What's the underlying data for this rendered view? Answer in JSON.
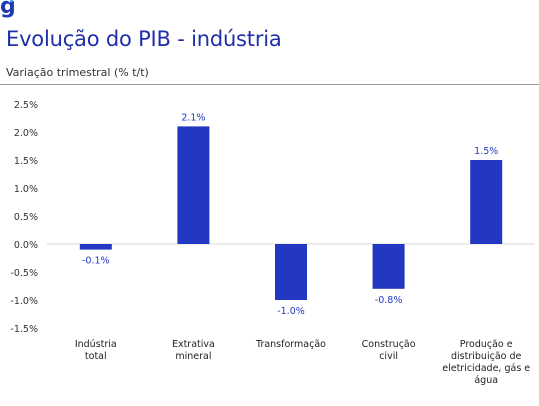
{
  "brand": {
    "logo_text": "g",
    "accent_color": "#4aa3ff"
  },
  "header": {
    "title": "Evolução do PIB - indústria",
    "subtitle": "Variação trimestral (% t/t)"
  },
  "chart_data": {
    "type": "bar",
    "title": "Evolução do PIB - indústria",
    "ylabel": "Variação trimestral (% t/t)",
    "xlabel": "",
    "categories": [
      [
        "Indústria",
        "total"
      ],
      [
        "Extrativa",
        "mineral"
      ],
      [
        "Transformação"
      ],
      [
        "Construção",
        "civil"
      ],
      [
        "Produção e",
        "distribuição de",
        "eletricidade, gás e",
        "água"
      ]
    ],
    "values": [
      -0.1,
      2.1,
      -1.0,
      -0.8,
      1.5
    ],
    "value_labels": [
      "-0.1%",
      "2.1%",
      "-1.0%",
      "-0.8%",
      "1.5%"
    ],
    "ylim": [
      -1.5,
      2.5
    ],
    "yticks": [
      2.5,
      2.0,
      1.5,
      1.0,
      0.5,
      0.0,
      -0.5,
      -1.0,
      -1.5
    ],
    "ytick_labels": [
      "2.5%",
      "2.0%",
      "1.5%",
      "1.0%",
      "0.5%",
      "0.0%",
      "-0.5%",
      "-1.0%",
      "-1.5%"
    ],
    "grid": false,
    "bar_color": "#2338c2",
    "label_color": "#2338c2"
  }
}
